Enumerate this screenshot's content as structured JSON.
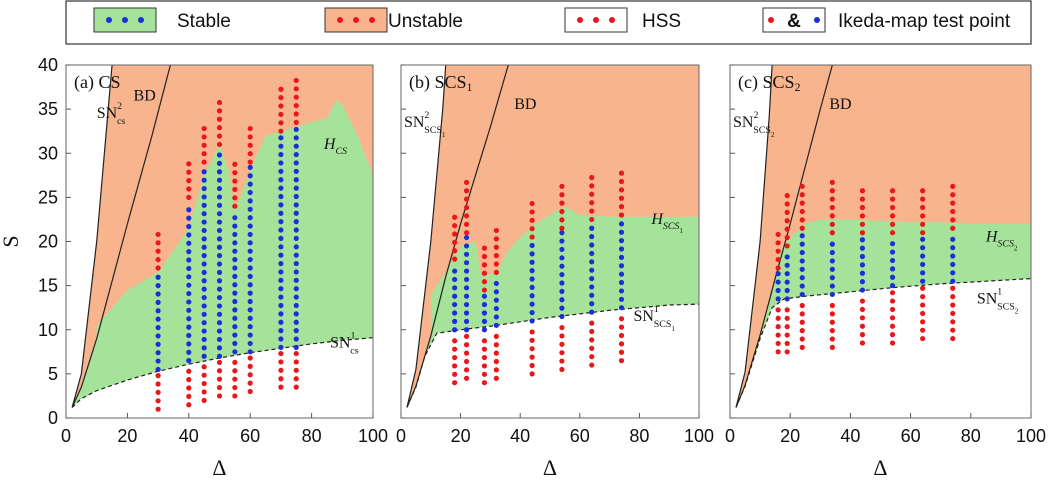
{
  "legend": {
    "items": [
      {
        "label": "Stable",
        "kind": "stable"
      },
      {
        "label": "Unstable",
        "kind": "unstable"
      },
      {
        "label": "HSS",
        "kind": "hss"
      },
      {
        "label": "Ikeda-map test point",
        "kind": "ikeda",
        "amp": "&"
      }
    ]
  },
  "colors": {
    "stable": "#a6e39a",
    "unstable": "#f8b48c",
    "red_dot": "#e8171a",
    "blue_dot": "#1930d8",
    "line": "#222222"
  },
  "chart_data": [
    {
      "type": "area",
      "panel_label": "(a) CS",
      "xlabel": "Δ",
      "ylabel": "S",
      "xlim": [
        0,
        100
      ],
      "ylim": [
        0,
        40
      ],
      "xticks": [
        0,
        20,
        40,
        60,
        80,
        100
      ],
      "yticks": [
        0,
        5,
        10,
        15,
        20,
        25,
        30,
        35,
        40
      ],
      "show_y_ticklabels": true,
      "curves": {
        "sn1": [
          [
            2,
            1.2
          ],
          [
            5,
            2.2
          ],
          [
            10,
            3.1
          ],
          [
            20,
            4.3
          ],
          [
            30,
            5.3
          ],
          [
            40,
            6.1
          ],
          [
            50,
            6.8
          ],
          [
            60,
            7.4
          ],
          [
            70,
            7.9
          ],
          [
            80,
            8.4
          ],
          [
            90,
            8.8
          ],
          [
            100,
            9.1
          ]
        ],
        "sn2": [
          [
            2,
            1.2
          ],
          [
            5,
            5.0
          ],
          [
            10,
            20
          ],
          [
            15,
            40
          ]
        ],
        "bd": [
          [
            2,
            1.2
          ],
          [
            5,
            3.5
          ],
          [
            10,
            9
          ],
          [
            20,
            22
          ],
          [
            28,
            32
          ],
          [
            34,
            40
          ]
        ],
        "h": [
          [
            10,
            10.5
          ],
          [
            20,
            14.5
          ],
          [
            30,
            16.5
          ],
          [
            40,
            21.5
          ],
          [
            45,
            27.5
          ],
          [
            50,
            31
          ],
          [
            53,
            28
          ],
          [
            55,
            23.5
          ],
          [
            60,
            28
          ],
          [
            65,
            32
          ],
          [
            70,
            32.5
          ],
          [
            75,
            33
          ],
          [
            80,
            33.5
          ],
          [
            85,
            34
          ],
          [
            88,
            36
          ],
          [
            90,
            35.5
          ],
          [
            95,
            32
          ],
          [
            100,
            27.5
          ]
        ]
      },
      "annotations": [
        {
          "text": "SN",
          "sup": "2",
          "sub": "cs",
          "x": 10,
          "y": 34
        },
        {
          "text": "BD",
          "x": 22,
          "y": 36
        },
        {
          "text": "H",
          "sub": "CS",
          "x": 84,
          "y": 30.5
        },
        {
          "text": "SN",
          "sup": "1",
          "sub": "cs",
          "x": 86,
          "y": 8
        }
      ],
      "test_columns": [
        {
          "x": 30,
          "red_low": [
            1,
            5
          ],
          "blue": [
            5.5,
            16.5
          ],
          "red_high": [
            17,
            21.5
          ]
        },
        {
          "x": 40,
          "red_low": [
            1.5,
            6
          ],
          "blue": [
            6.5,
            24.5
          ],
          "red_high": [
            25,
            29.5
          ]
        },
        {
          "x": 45,
          "red_low": [
            2,
            6.5
          ],
          "blue": [
            7,
            28.5
          ],
          "red_high": [
            29,
            33.5
          ]
        },
        {
          "x": 50,
          "red_low": [
            2.5,
            6.5
          ],
          "blue": [
            7,
            30.5
          ],
          "red_high": [
            31,
            36
          ]
        },
        {
          "x": 55,
          "red_low": [
            2.5,
            7
          ],
          "blue": [
            7.5,
            23.5
          ],
          "red_high": [
            24,
            29.5
          ]
        },
        {
          "x": 60,
          "red_low": [
            3,
            7
          ],
          "blue": [
            7.5,
            28.5
          ],
          "red_high": [
            29,
            33.5
          ]
        },
        {
          "x": 70,
          "red_low": [
            3.5,
            7.5
          ],
          "blue": [
            8,
            32
          ],
          "red_high": [
            32.5,
            38
          ]
        },
        {
          "x": 75,
          "red_low": [
            3.5,
            7.5
          ],
          "blue": [
            8,
            33
          ],
          "red_high": [
            33.5,
            38.5
          ]
        }
      ]
    },
    {
      "type": "area",
      "panel_label": "(b) SCS",
      "panel_label_sub": "1",
      "xlabel": "Δ",
      "ylabel": "",
      "xlim": [
        0,
        100
      ],
      "ylim": [
        0,
        40
      ],
      "xticks": [
        0,
        20,
        40,
        60,
        80,
        100
      ],
      "yticks": [
        0,
        5,
        10,
        15,
        20,
        25,
        30,
        35,
        40
      ],
      "show_y_ticklabels": false,
      "curves": {
        "sn1": [
          [
            2,
            1.2
          ],
          [
            5,
            3.5
          ],
          [
            8,
            7
          ],
          [
            12,
            9.6
          ],
          [
            20,
            10.0
          ],
          [
            30,
            10.4
          ],
          [
            40,
            10.9
          ],
          [
            50,
            11.4
          ],
          [
            60,
            11.8
          ],
          [
            70,
            12.2
          ],
          [
            80,
            12.5
          ],
          [
            90,
            12.8
          ],
          [
            100,
            12.9
          ]
        ],
        "sn2": [
          [
            2,
            1.2
          ],
          [
            5,
            5.5
          ],
          [
            10,
            20
          ],
          [
            14,
            35
          ],
          [
            15,
            40
          ]
        ],
        "bd": [
          [
            2,
            1.2
          ],
          [
            5,
            3.6
          ],
          [
            10,
            9.3
          ],
          [
            15,
            16
          ],
          [
            20,
            22
          ],
          [
            30,
            33
          ],
          [
            36,
            40
          ]
        ],
        "h": [
          [
            10,
            14
          ],
          [
            15,
            16.5
          ],
          [
            20,
            19.5
          ],
          [
            25,
            20
          ],
          [
            27,
            16
          ],
          [
            32,
            16.5
          ],
          [
            36,
            19
          ],
          [
            40,
            20.5
          ],
          [
            45,
            22
          ],
          [
            50,
            23
          ],
          [
            55,
            24
          ],
          [
            60,
            23
          ],
          [
            70,
            22.8
          ],
          [
            80,
            22.8
          ],
          [
            90,
            22.8
          ],
          [
            100,
            22.8
          ]
        ]
      },
      "annotations": [
        {
          "text": "SN",
          "sup": "2",
          "sub": "SCS",
          "subsub": "1",
          "x": 1,
          "y": 33
        },
        {
          "text": "BD",
          "x": 38,
          "y": 35
        },
        {
          "text": "H",
          "sub": "SCS",
          "subsub": "1",
          "x": 84,
          "y": 22
        },
        {
          "text": "SN",
          "sup": "1",
          "sub": "SCS",
          "subsub": "1",
          "x": 78,
          "y": 11
        }
      ],
      "test_columns": [
        {
          "x": 18,
          "red_low": [
            4,
            9.5
          ],
          "blue": [
            10,
            17.5
          ],
          "red_high": [
            18,
            23
          ]
        },
        {
          "x": 22,
          "red_low": [
            4.5,
            9.5
          ],
          "blue": [
            10,
            20.5
          ],
          "red_high": [
            21,
            27
          ]
        },
        {
          "x": 28,
          "red_low": [
            4,
            9.5
          ],
          "blue": [
            10,
            14
          ],
          "red_high": [
            14.5,
            19.5
          ]
        },
        {
          "x": 32,
          "red_low": [
            4.5,
            10
          ],
          "blue": [
            10.5,
            16
          ],
          "red_high": [
            16.5,
            21.5
          ]
        },
        {
          "x": 44,
          "red_low": [
            5,
            10.5
          ],
          "blue": [
            11,
            20
          ],
          "red_high": [
            20.5,
            25
          ]
        },
        {
          "x": 54,
          "red_low": [
            5.5,
            11
          ],
          "blue": [
            11.5,
            21
          ],
          "red_high": [
            21.5,
            27
          ]
        },
        {
          "x": 64,
          "red_low": [
            6,
            11.5
          ],
          "blue": [
            12,
            22
          ],
          "red_high": [
            22.5,
            27.5
          ]
        },
        {
          "x": 74,
          "red_low": [
            6.5,
            12
          ],
          "blue": [
            12.5,
            22.5
          ],
          "red_high": [
            23,
            28.5
          ]
        }
      ]
    },
    {
      "type": "area",
      "panel_label": "(c) SCS",
      "panel_label_sub": "2",
      "xlabel": "Δ",
      "ylabel": "",
      "xlim": [
        0,
        100
      ],
      "ylim": [
        0,
        40
      ],
      "xticks": [
        0,
        20,
        40,
        60,
        80,
        100
      ],
      "yticks": [
        0,
        5,
        10,
        15,
        20,
        25,
        30,
        35,
        40
      ],
      "show_y_ticklabels": false,
      "curves": {
        "sn1": [
          [
            2,
            1.2
          ],
          [
            5,
            3.6
          ],
          [
            10,
            9
          ],
          [
            14,
            12.5
          ],
          [
            18,
            13.5
          ],
          [
            25,
            13.8
          ],
          [
            40,
            14.3
          ],
          [
            55,
            14.8
          ],
          [
            70,
            15.2
          ],
          [
            85,
            15.5
          ],
          [
            100,
            15.8
          ]
        ],
        "sn2": [
          [
            2,
            1.2
          ],
          [
            5,
            5.2
          ],
          [
            10,
            20
          ],
          [
            13,
            34
          ],
          [
            14,
            40
          ]
        ],
        "bd": [
          [
            2,
            1.2
          ],
          [
            5,
            3.7
          ],
          [
            10,
            9.4
          ],
          [
            15,
            15.8
          ],
          [
            20,
            22
          ],
          [
            25,
            28.5
          ],
          [
            30,
            35
          ],
          [
            34,
            40
          ]
        ],
        "h": [
          [
            17,
            19
          ],
          [
            20,
            20.5
          ],
          [
            25,
            22
          ],
          [
            30,
            22.5
          ],
          [
            40,
            22.5
          ],
          [
            50,
            22.3
          ],
          [
            60,
            22.2
          ],
          [
            70,
            22.2
          ],
          [
            80,
            22
          ],
          [
            90,
            22
          ],
          [
            100,
            22
          ]
        ]
      },
      "annotations": [
        {
          "text": "SN",
          "sup": "2",
          "sub": "SCS",
          "subsub": "2",
          "x": 1,
          "y": 33
        },
        {
          "text": "BD",
          "x": 33,
          "y": 35
        },
        {
          "text": "H",
          "sub": "SCS",
          "subsub": "2",
          "x": 85,
          "y": 20
        },
        {
          "text": "SN",
          "sup": "1",
          "sub": "SCS",
          "subsub": "2",
          "x": 82,
          "y": 13
        }
      ],
      "test_columns": [
        {
          "x": 16,
          "red_low": [
            7.5,
            13
          ],
          "blue": [
            13.5,
            16.5
          ],
          "red_high": [
            17,
            21
          ]
        },
        {
          "x": 19,
          "red_low": [
            7.5,
            13
          ],
          "blue": [
            13.5,
            19
          ],
          "red_high": [
            19.5,
            25.5
          ]
        },
        {
          "x": 24,
          "red_low": [
            8,
            13.5
          ],
          "blue": [
            14,
            21
          ],
          "red_high": [
            21.5,
            27
          ]
        },
        {
          "x": 34,
          "red_low": [
            8,
            13.5
          ],
          "blue": [
            14,
            20.5
          ],
          "red_high": [
            21,
            27
          ]
        },
        {
          "x": 44,
          "red_low": [
            8.5,
            14
          ],
          "blue": [
            14.5,
            20.5
          ],
          "red_high": [
            21,
            26.5
          ]
        },
        {
          "x": 54,
          "red_low": [
            8.5,
            14.5
          ],
          "blue": [
            15,
            20.5
          ],
          "red_high": [
            21,
            26.5
          ]
        },
        {
          "x": 64,
          "red_low": [
            9,
            15
          ],
          "blue": [
            15.5,
            20.5
          ],
          "red_high": [
            21,
            26.5
          ]
        },
        {
          "x": 74,
          "red_low": [
            9,
            15
          ],
          "blue": [
            15.5,
            21
          ],
          "red_high": [
            21.5,
            27
          ]
        }
      ]
    }
  ]
}
